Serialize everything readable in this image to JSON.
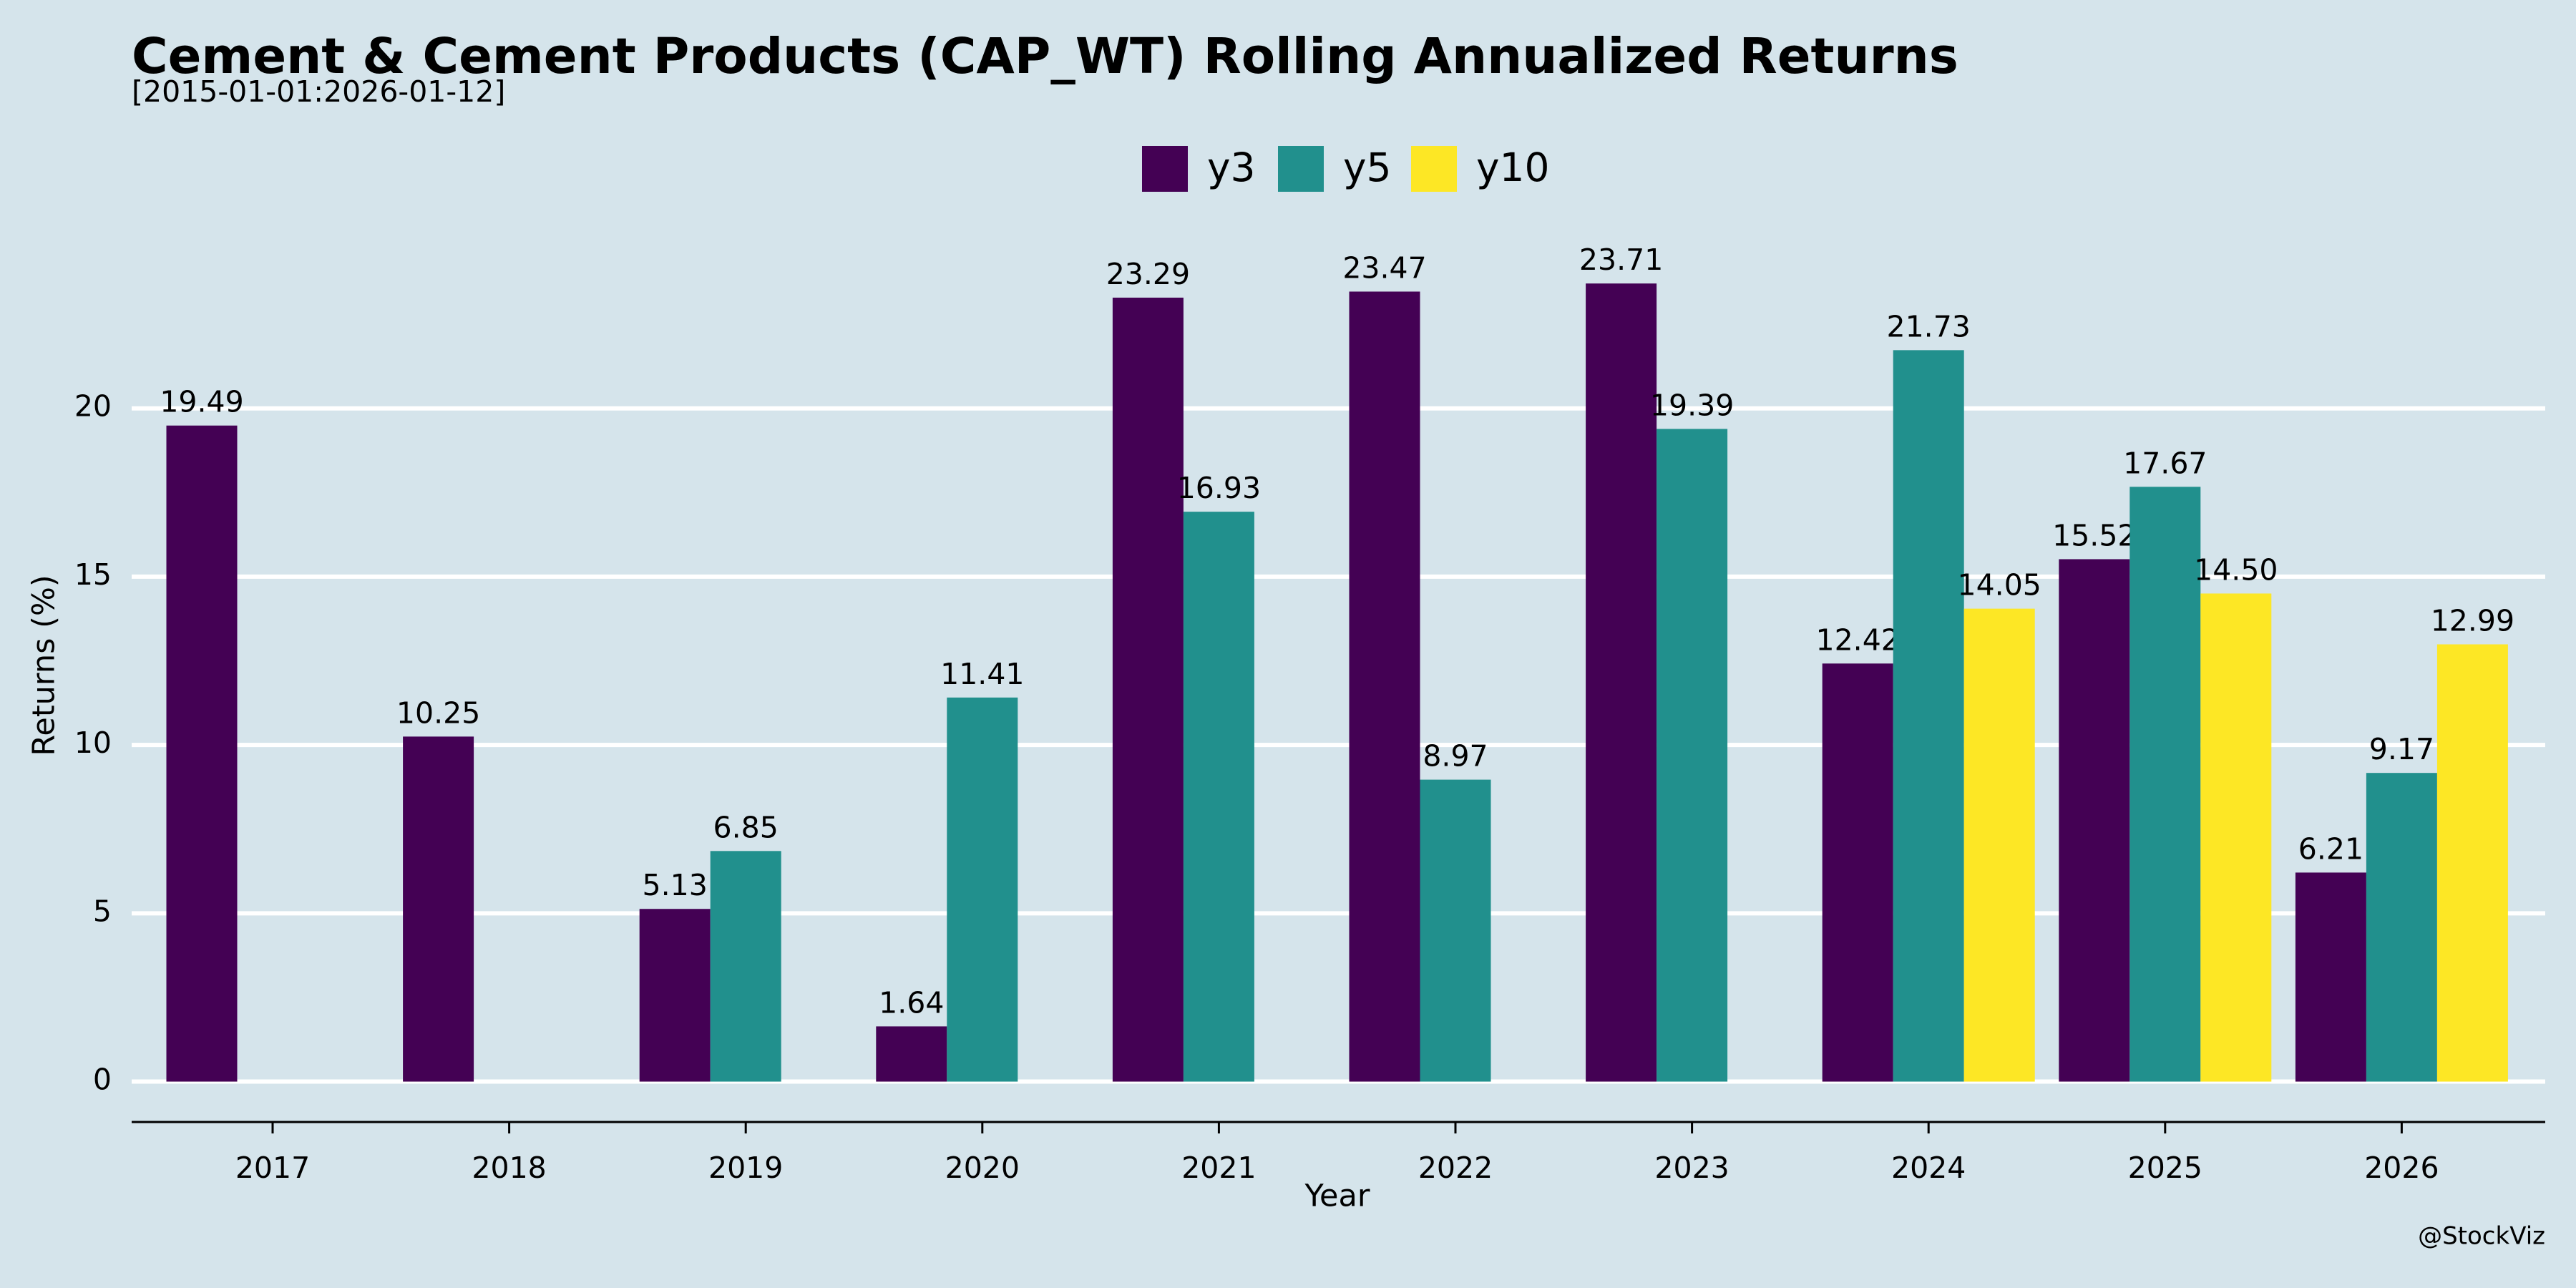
{
  "chart_data": {
    "type": "bar",
    "title": "Cement & Cement Products (CAP_WT) Rolling Annualized Returns",
    "subtitle": "[2015-01-01:2026-01-12]",
    "x_label": "Year",
    "y_label": "Returns (%)",
    "watermark": "@StockViz",
    "categories": [
      "2017",
      "2018",
      "2019",
      "2020",
      "2021",
      "2022",
      "2023",
      "2024",
      "2025",
      "2026"
    ],
    "series": [
      {
        "name": "y3",
        "color": "#440154",
        "values": [
          19.49,
          10.25,
          5.13,
          1.64,
          23.29,
          23.47,
          23.71,
          12.42,
          15.52,
          6.21
        ]
      },
      {
        "name": "y5",
        "color": "#21908d",
        "values": [
          null,
          null,
          6.85,
          11.41,
          16.93,
          8.97,
          19.39,
          21.73,
          17.67,
          9.17
        ]
      },
      {
        "name": "y10",
        "color": "#fde725",
        "values": [
          null,
          null,
          null,
          null,
          null,
          null,
          null,
          14.05,
          14.5,
          12.99
        ],
        "value_labels": [
          null,
          null,
          null,
          null,
          null,
          null,
          null,
          "14.05",
          "14.50",
          "12.99"
        ]
      }
    ],
    "ylim": [
      -1.2,
      25.5
    ],
    "yticks": [
      0,
      5,
      10,
      15,
      20
    ],
    "grid": true,
    "legend": "top"
  }
}
